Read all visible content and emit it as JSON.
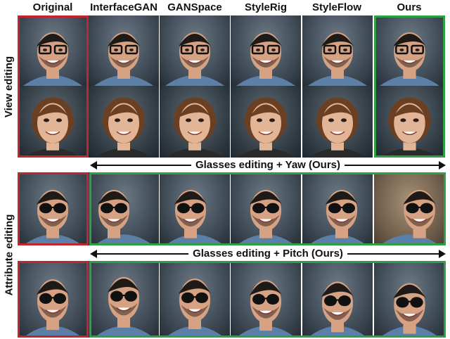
{
  "columns": [
    "Original",
    "InterfaceGAN",
    "GANSpace",
    "StyleRig",
    "StyleFlow",
    "Ours"
  ],
  "row_labels": {
    "view": "View editing",
    "attribute": "Attribute editing"
  },
  "captions": {
    "yaw": "Glasses editing + Yaw (Ours)",
    "pitch": "Glasses editing + Pitch (Ours)"
  },
  "colors": {
    "original_frame": "#c0272d",
    "ours_frame": "#2f9e44"
  },
  "rows": [
    {
      "subject": "man-clear-glasses",
      "tiles": [
        "original",
        "interfacegan",
        "ganspace",
        "stylerig",
        "styleflow",
        "ours"
      ]
    },
    {
      "subject": "woman",
      "tiles": [
        "original",
        "interfacegan",
        "ganspace",
        "stylerig",
        "styleflow",
        "ours"
      ]
    },
    {
      "subject": "man-sunglasses-yaw",
      "tiles": [
        "original",
        "yaw-1",
        "yaw-2",
        "yaw-3",
        "yaw-4",
        "yaw-5"
      ]
    },
    {
      "subject": "man-sunglasses-pitch",
      "tiles": [
        "original",
        "pitch-1",
        "pitch-2",
        "pitch-3",
        "pitch-4",
        "pitch-5"
      ]
    }
  ]
}
